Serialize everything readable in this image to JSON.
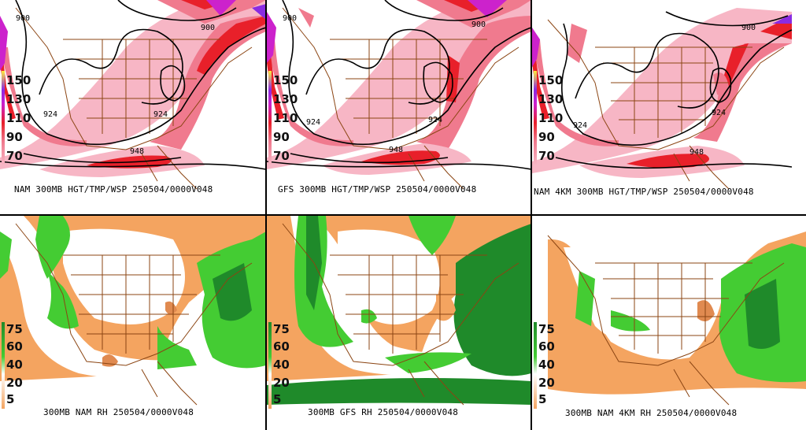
{
  "panels": [
    {
      "caption": "NAM 300MB HGT/TMP/WSP 250504/0000V048",
      "legend": [
        "150",
        "130",
        "110",
        "90",
        "70"
      ],
      "contours": [
        "900",
        "924",
        "924",
        "948"
      ]
    },
    {
      "caption": "GFS 300MB HGT/TMP/WSP 250504/0000V048",
      "legend": [
        "150",
        "130",
        "110",
        "90",
        "70"
      ],
      "contours": [
        "900",
        "900",
        "924",
        "924",
        "948"
      ]
    },
    {
      "caption": "NAM 4KM 300MB HGT/TMP/WSP 250504/0000V048",
      "legend": [
        "150",
        "130",
        "110",
        "90",
        "70"
      ],
      "contours": [
        "900",
        "924",
        "924",
        "948"
      ]
    },
    {
      "caption": "300MB NAM RH 250504/0000V048",
      "legend": [
        "75",
        "60",
        "40",
        "20",
        "5"
      ]
    },
    {
      "caption": "300MB GFS RH 250504/0000V048",
      "legend": [
        "75",
        "60",
        "40",
        "20",
        "5"
      ]
    },
    {
      "caption": "300MB NAM 4KM RH 250504/0000V048",
      "legend": [
        "75",
        "60",
        "40",
        "20",
        "5"
      ]
    }
  ],
  "colors": {
    "wind_light": "#f7b6c5",
    "wind_mid": "#f07a8e",
    "wind_strong": "#e8202a",
    "wind_max": "#cc22cc",
    "wind_top": "#8a2be2",
    "rh_dry": "#f4a460",
    "rh_light_green": "#44cc33",
    "rh_dark_green": "#1f8a2a",
    "borders": "#8b4513",
    "contour": "#000000"
  }
}
